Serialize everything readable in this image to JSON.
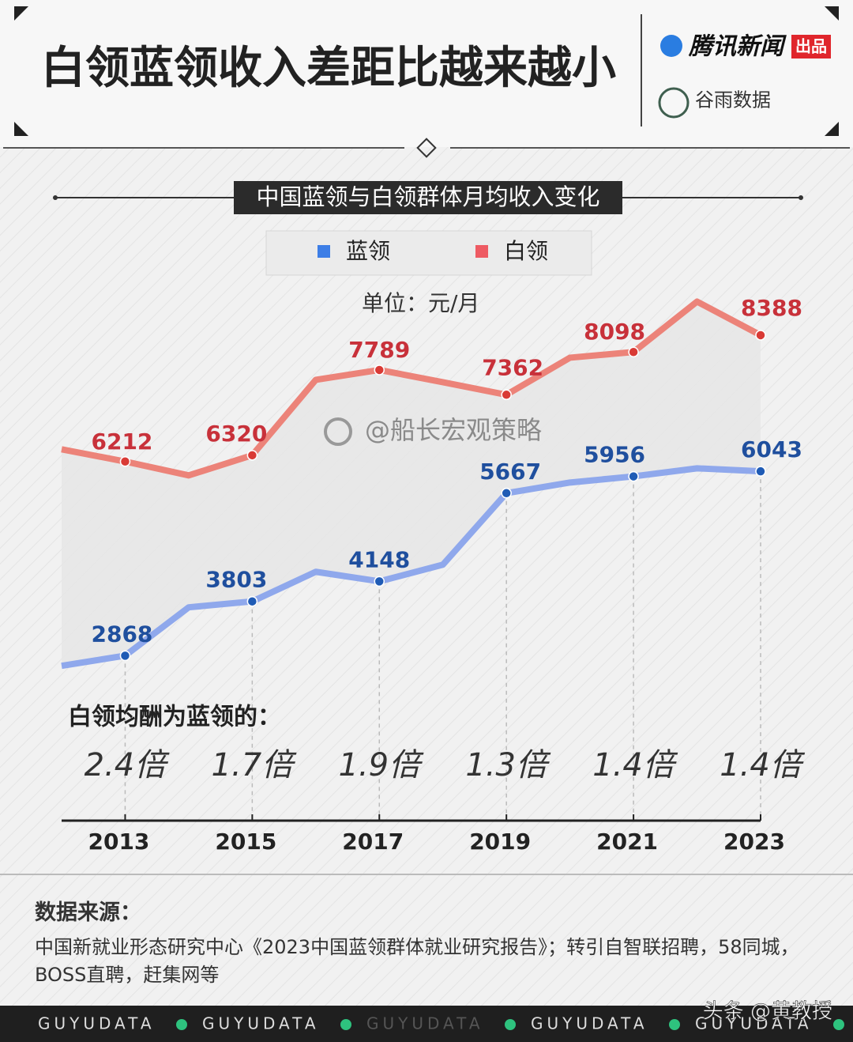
{
  "header": {
    "title": "白领蓝领收入差距比越来越小",
    "brand": "腾讯新闻",
    "brand_tag": "出品",
    "partner": "谷雨数据"
  },
  "chart_data": {
    "type": "line",
    "title": "中国蓝领与白领群体月均收入变化",
    "unit": "单位：元/月",
    "x": [
      2012,
      2013,
      2014,
      2015,
      2016,
      2017,
      2018,
      2019,
      2020,
      2021,
      2022,
      2023
    ],
    "xlim": [
      2012,
      2023
    ],
    "xticks": [
      2013,
      2015,
      2017,
      2019,
      2021,
      2023
    ],
    "ylim": [
      0,
      9000
    ],
    "grid": false,
    "legend": "top",
    "series": [
      {
        "name": "蓝领",
        "color": "#8fa8ec",
        "point_color": "#1f5bb5",
        "label_color": "#1f4f9e",
        "values": [
          2694,
          2868,
          3701,
          3803,
          4313,
          4148,
          4435,
          5667,
          5850,
          5956,
          6095,
          6043
        ],
        "value_labels": [
          null,
          "2868",
          null,
          "3803",
          null,
          "4148",
          null,
          "5667",
          null,
          "5956",
          null,
          "6043"
        ]
      },
      {
        "name": "白领",
        "color": "#ec8379",
        "point_color": "#d93a35",
        "label_color": "#c8313a",
        "values": [
          6422,
          6212,
          5973,
          6320,
          7619,
          7789,
          7578,
          7362,
          8000,
          8098,
          8966,
          8388
        ],
        "value_labels": [
          null,
          "6212",
          null,
          "6320",
          null,
          "7789",
          null,
          "7362",
          null,
          "8098",
          null,
          "8388"
        ]
      }
    ],
    "ratio_title": "白领均酬为蓝领的：",
    "ratios": [
      "2.4倍",
      "1.7倍",
      "1.9倍",
      "1.3倍",
      "1.4倍",
      "1.4倍"
    ]
  },
  "watermark": "@船长宏观策略",
  "source": {
    "title": "数据来源：",
    "text": "中国新就业形态研究中心《2023中国蓝领群体就业研究报告》；转引自智联招聘，58同城，BOSS直聘，赶集网等"
  },
  "footer": {
    "items": [
      "GUYUDATA",
      "GUYUDATA",
      "GUYUDATA",
      "GUYUDATA",
      "GUYUDATA"
    ],
    "credit": "头条 @黄教授"
  }
}
